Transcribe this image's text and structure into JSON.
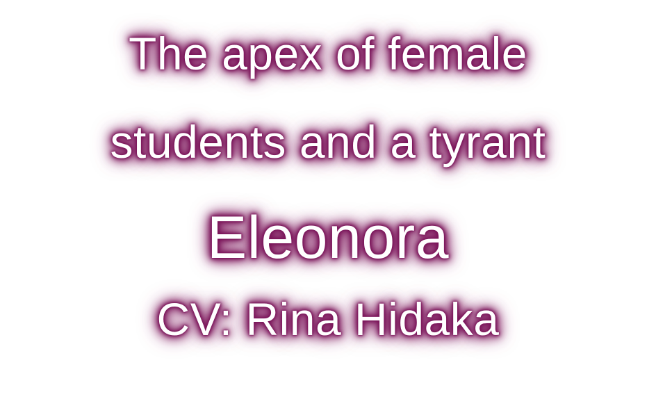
{
  "caption": {
    "line1": "The apex of female",
    "line2": "students and a tyrant",
    "name": "Eleonora",
    "cv": "CV: Rina Hidaka"
  },
  "colors": {
    "background": "#ffffff",
    "text": "#ffffff",
    "glow": "#7a1459"
  }
}
